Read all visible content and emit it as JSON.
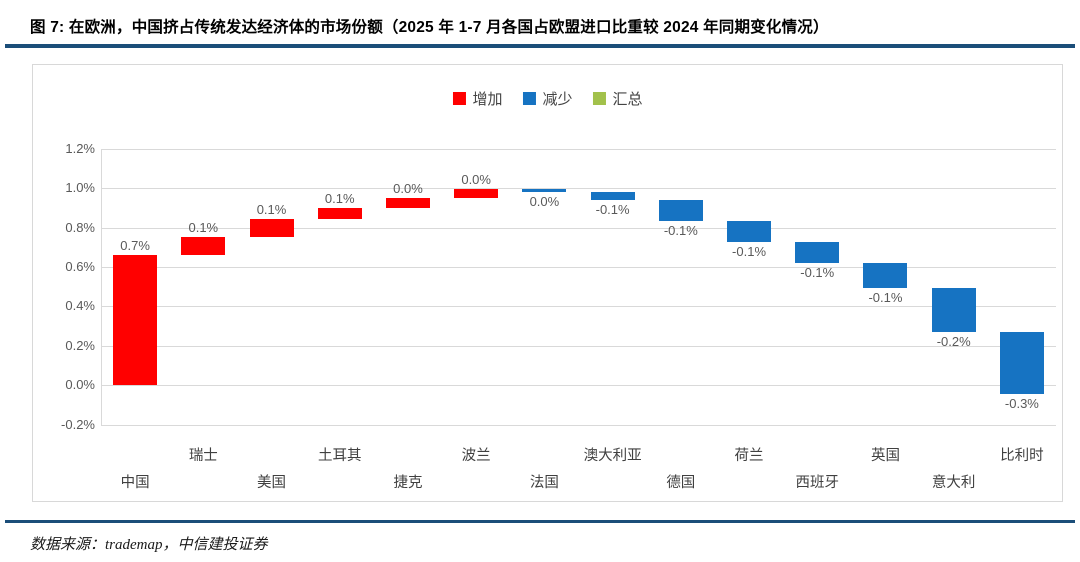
{
  "figure": {
    "title": "图 7:  在欧洲，中国挤占传统发达经济体的市场份额（2025 年 1-7 月各国占欧盟进口比重较 2024 年同期变化情况）",
    "source": "数据来源：trademap，中信建投证券"
  },
  "legend": [
    {
      "key": "increase",
      "label": "增加",
      "color": "#FF0000"
    },
    {
      "key": "decrease",
      "label": "减少",
      "color": "#1673C2"
    },
    {
      "key": "total",
      "label": "汇总",
      "color": "#A2C14B"
    }
  ],
  "colors": {
    "increase": "#FF0000",
    "decrease": "#1673C2",
    "total": "#A2C14B",
    "divider": "#1B4E79",
    "grid": "#D9D9D9",
    "tick_text": "#595959"
  },
  "chart_data": {
    "type": "bar",
    "subtype": "waterfall",
    "title": "各国占欧盟进口比重较2024年同期变化",
    "categories": [
      "中国",
      "瑞士",
      "美国",
      "土耳其",
      "捷克",
      "波兰",
      "法国",
      "澳大利亚",
      "德国",
      "荷兰",
      "西班牙",
      "英国",
      "意大利",
      "比利时"
    ],
    "values": [
      0.7,
      0.1,
      0.1,
      0.1,
      0.0,
      0.0,
      0.0,
      -0.1,
      -0.1,
      -0.1,
      -0.1,
      -0.1,
      -0.2,
      -0.3
    ],
    "data_labels": [
      "0.7%",
      "0.1%",
      "0.1%",
      "0.1%",
      "0.0%",
      "0.0%",
      "0.0%",
      "-0.1%",
      "-0.1%",
      "-0.1%",
      "-0.1%",
      "-0.1%",
      "-0.2%",
      "-0.3%"
    ],
    "bar_types": [
      "increase",
      "increase",
      "increase",
      "increase",
      "increase",
      "increase",
      "decrease",
      "decrease",
      "decrease",
      "decrease",
      "decrease",
      "decrease",
      "decrease",
      "decrease"
    ],
    "cumulative": [
      [
        0.0,
        0.66
      ],
      [
        0.66,
        0.755
      ],
      [
        0.755,
        0.845
      ],
      [
        0.845,
        0.9
      ],
      [
        0.9,
        0.95
      ],
      [
        0.95,
        0.995
      ],
      [
        0.995,
        0.982
      ],
      [
        0.982,
        0.942
      ],
      [
        0.942,
        0.835
      ],
      [
        0.835,
        0.728
      ],
      [
        0.728,
        0.623
      ],
      [
        0.623,
        0.495
      ],
      [
        0.495,
        0.272
      ],
      [
        0.272,
        -0.045
      ]
    ],
    "xlabel": "",
    "ylabel": "",
    "ylim": [
      -0.2,
      1.2
    ],
    "y_ticks": [
      "1.2%",
      "1.0%",
      "0.8%",
      "0.6%",
      "0.4%",
      "0.2%",
      "0.0%",
      "-0.2%"
    ],
    "y_tick_values": [
      1.2,
      1.0,
      0.8,
      0.6,
      0.4,
      0.2,
      0.0,
      -0.2
    ],
    "grid": true,
    "legend_position": "top center"
  }
}
